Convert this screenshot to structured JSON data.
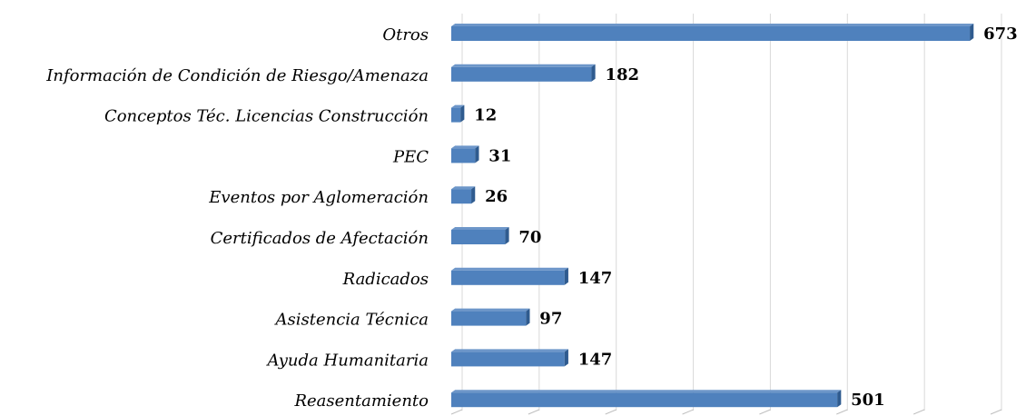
{
  "chart_data": {
    "type": "barh",
    "categories": [
      "Otros",
      "Información de Condición de Riesgo/Amenaza",
      "Conceptos Téc. Licencias Construcción",
      "PEC",
      "Eventos por  Aglomeración",
      "Certificados de Afectación",
      "Radicados",
      "Asistencia Técnica",
      "Ayuda Humanitaria",
      "Reasentamiento"
    ],
    "values": [
      673,
      182,
      12,
      31,
      26,
      70,
      147,
      97,
      147,
      501
    ],
    "color": "#4f81bd",
    "xlim": [
      0,
      700
    ],
    "xticks": [
      0,
      100,
      200,
      300,
      400,
      500,
      600,
      700
    ],
    "grid": true
  }
}
